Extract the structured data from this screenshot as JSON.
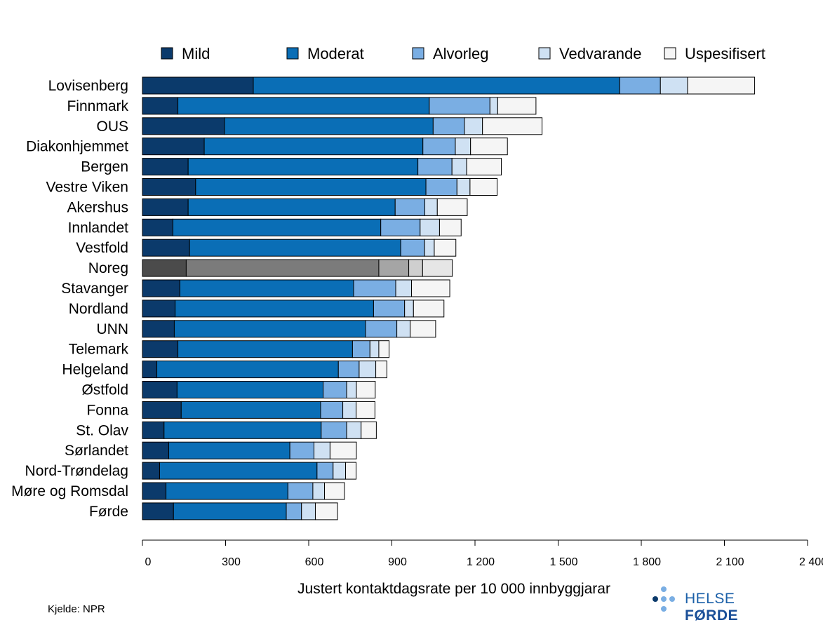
{
  "chart_data": {
    "type": "bar",
    "orientation": "horizontal",
    "stacked": true,
    "categories": [
      "Lovisenberg",
      "Finnmark",
      "OUS",
      "Diakonhjemmet",
      "Bergen",
      "Vestre Viken",
      "Akershus",
      "Innlandet",
      "Vestfold",
      "Noreg",
      "Stavanger",
      "Nordland",
      "UNN",
      "Telemark",
      "Helgeland",
      "Østfold",
      "Fonna",
      "St. Olav",
      "Sørlandet",
      "Nord-Trøndelag",
      "Møre og Romsdal",
      "Førde"
    ],
    "series": [
      {
        "name": "Mild",
        "color": "#0b3a6b",
        "values": [
          400,
          128,
          296,
          223,
          165,
          192,
          165,
          110,
          170,
          158,
          135,
          118,
          115,
          128,
          52,
          125,
          140,
          78,
          95,
          62,
          85,
          112
        ]
      },
      {
        "name": "Moderat",
        "color": "#0a6eb6",
        "values": [
          1322,
          907,
          753,
          789,
          829,
          831,
          747,
          750,
          762,
          695,
          627,
          716,
          690,
          630,
          655,
          527,
          503,
          567,
          437,
          568,
          440,
          407
        ]
      },
      {
        "name": "Alvorleg",
        "color": "#7aaee3",
        "values": [
          147,
          219,
          113,
          117,
          123,
          112,
          107,
          142,
          86,
          108,
          152,
          112,
          113,
          63,
          75,
          85,
          80,
          92,
          87,
          58,
          90,
          55
        ]
      },
      {
        "name": "Vedvarande",
        "color": "#cfe1f3",
        "values": [
          98,
          28,
          65,
          55,
          53,
          47,
          45,
          70,
          35,
          50,
          57,
          32,
          48,
          32,
          60,
          35,
          48,
          52,
          58,
          45,
          42,
          50
        ]
      },
      {
        "name": "Uspesifisert",
        "color": "#f5f5f5",
        "values": [
          242,
          138,
          215,
          133,
          125,
          98,
          108,
          78,
          78,
          107,
          138,
          110,
          92,
          37,
          40,
          68,
          68,
          55,
          95,
          38,
          72,
          80
        ]
      }
    ],
    "highlight_category": "Noreg",
    "highlight_colors": [
      "#4b4b4b",
      "#7b7b7b",
      "#a5a5a5",
      "#cfcfcf",
      "#e6e6e6"
    ],
    "xlim": [
      0,
      2400
    ],
    "xticks": [
      0,
      300,
      600,
      900,
      1200,
      1500,
      1800,
      2100,
      2400
    ],
    "xtick_labels": [
      "0",
      "300",
      "600",
      "900",
      "1 200",
      "1 500",
      "1 800",
      "2 100",
      "2 400"
    ],
    "xlabel": "Justert kontaktdagsrate per 10 000 innbyggjarar",
    "legend_position": "top"
  },
  "source_note": "Kjelde: NPR",
  "logo": {
    "text_regular": "HELSE ",
    "text_bold": "FØRDE"
  }
}
